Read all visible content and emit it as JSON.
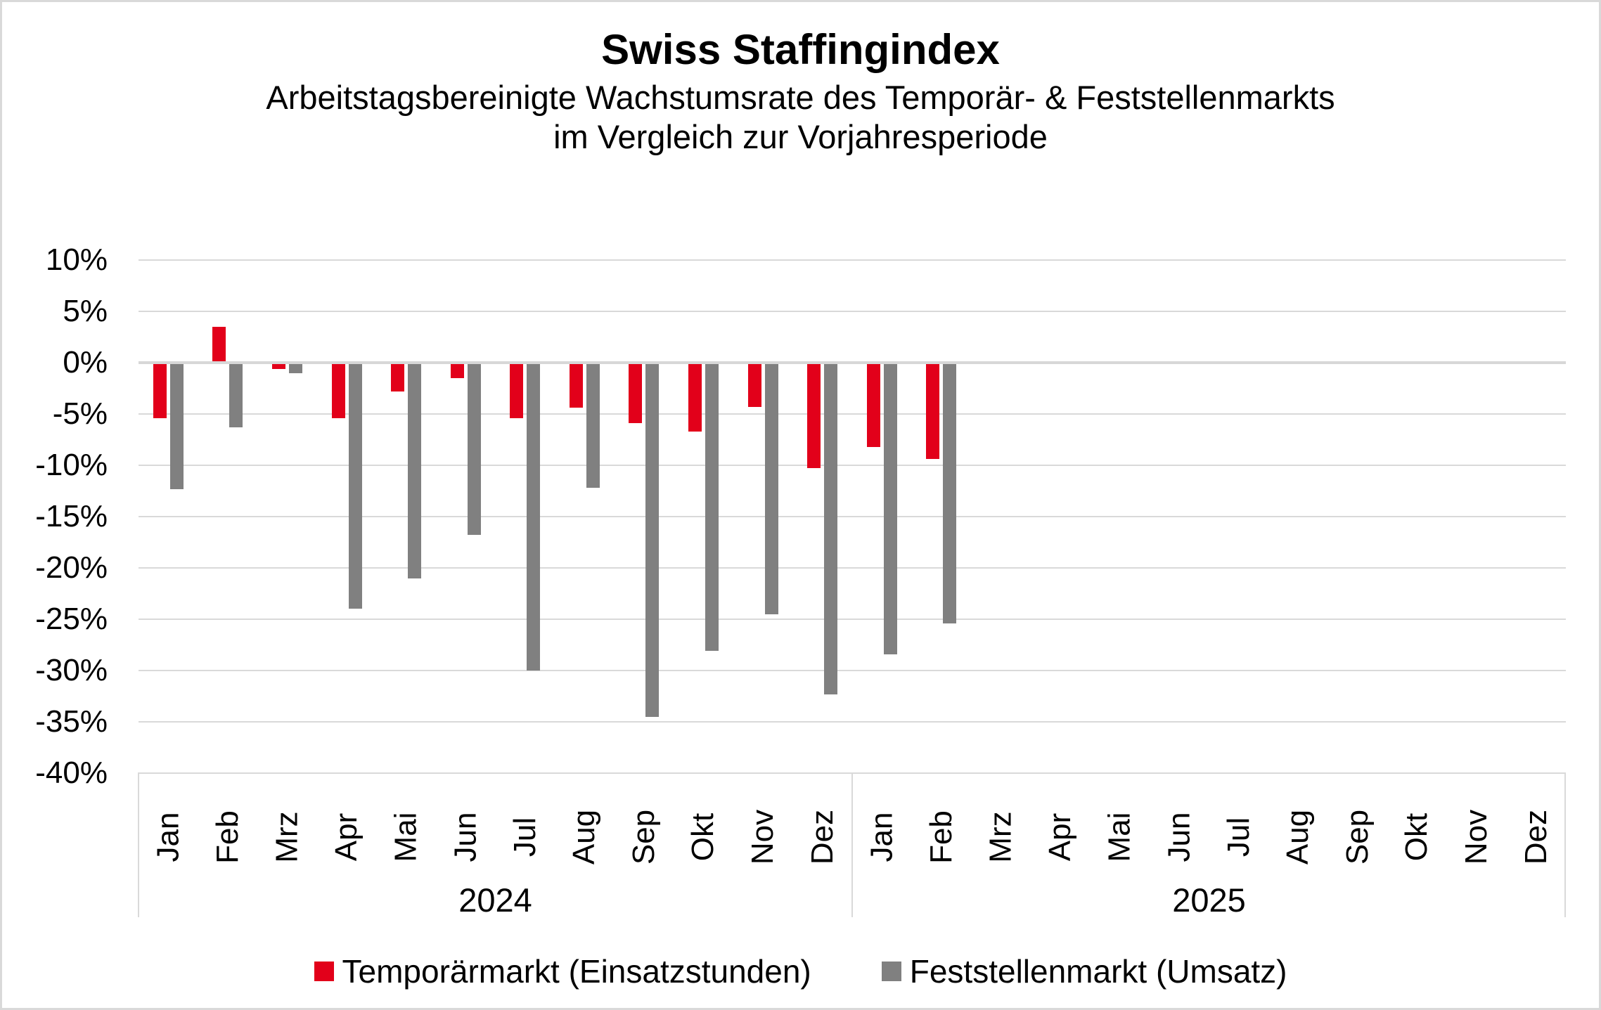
{
  "title": "Swiss Staffingindex",
  "subtitle_line1": "Arbeitstagsbereinigte Wachstumsrate des Temporär- & Feststellenmarkts",
  "subtitle_line2": "im Vergleich zur Vorjahresperiode",
  "colors": {
    "temp": "#e2001a",
    "fest": "#808080",
    "gridline": "#d9d9d9",
    "text": "#000000",
    "background": "#ffffff"
  },
  "legend": [
    {
      "label": "Temporärmarkt (Einsatzstunden)",
      "color_key": "temp"
    },
    {
      "label": "Feststellenmarkt (Umsatz)",
      "color_key": "fest"
    }
  ],
  "chart_data": {
    "type": "bar",
    "title": "Swiss Staffingindex",
    "subtitle": "Arbeitstagsbereinigte Wachstumsrate des Temporär- & Feststellenmarkts im Vergleich zur Vorjahresperiode",
    "unit": "%",
    "ylim": [
      -40,
      10
    ],
    "ytick_step": 5,
    "ytick_labels": [
      "10%",
      "5%",
      "0%",
      "-5%",
      "-10%",
      "-15%",
      "-20%",
      "-25%",
      "-30%",
      "-35%",
      "-40%"
    ],
    "grid": true,
    "legend_position": "bottom",
    "series_names": [
      "Temporärmarkt (Einsatzstunden)",
      "Feststellenmarkt (Umsatz)"
    ],
    "groups": [
      {
        "year": "2024",
        "categories": [
          "Jan",
          "Feb",
          "Mrz",
          "Apr",
          "Mai",
          "Jun",
          "Jul",
          "Aug",
          "Sep",
          "Okt",
          "Nov",
          "Dez"
        ],
        "series": [
          {
            "name": "Temporärmarkt (Einsatzstunden)",
            "values": [
              -5.4,
              3.5,
              -0.6,
              -5.4,
              -2.8,
              -1.5,
              -5.4,
              -4.4,
              -5.9,
              -6.7,
              -4.3,
              -10.3
            ]
          },
          {
            "name": "Feststellenmarkt (Umsatz)",
            "values": [
              -12.3,
              -6.3,
              -1.0,
              -24.0,
              -21.0,
              -16.8,
              -30.0,
              -12.2,
              -34.5,
              -28.1,
              -24.5,
              -32.3
            ]
          }
        ]
      },
      {
        "year": "2025",
        "categories": [
          "Jan",
          "Feb",
          "Mrz",
          "Apr",
          "Mai",
          "Jun",
          "Jul",
          "Aug",
          "Sep",
          "Okt",
          "Nov",
          "Dez"
        ],
        "series": [
          {
            "name": "Temporärmarkt (Einsatzstunden)",
            "values": [
              -8.2,
              -9.4,
              null,
              null,
              null,
              null,
              null,
              null,
              null,
              null,
              null,
              null
            ]
          },
          {
            "name": "Feststellenmarkt (Umsatz)",
            "values": [
              -28.4,
              -25.4,
              null,
              null,
              null,
              null,
              null,
              null,
              null,
              null,
              null,
              null
            ]
          }
        ]
      }
    ]
  }
}
